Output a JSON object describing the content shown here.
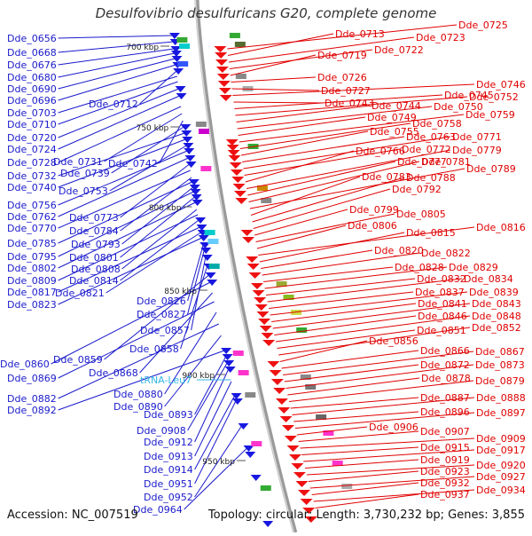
{
  "title": "Desulfovibrio desulfuricans G20, complete genome",
  "accession": "Accession: NC_007519",
  "summary": "Topology: circular; Length: 3,730,232 bp; Genes: 3,855",
  "colors": {
    "left_label": "#1a1acc",
    "right_label": "#e00000",
    "trna_label": "#33b5e5",
    "backbone": "#9a9a9a"
  },
  "kbp_marks": [
    "700 kbp",
    "750 kbp",
    "800 kbp",
    "850 kbp",
    "900 kbp",
    "950 kbp"
  ],
  "left_labels": [
    "Dde_0656",
    "Dde_0668",
    "Dde_0676",
    "Dde_0680",
    "Dde_0690",
    "Dde_0696",
    "Dde_0712",
    "Dde_0703",
    "Dde_0710",
    "Dde_0720",
    "Dde_0724",
    "Dde_0728",
    "Dde_0731",
    "Dde_0742",
    "Dde_0739",
    "Dde_0732",
    "Dde_0740",
    "Dde_0753",
    "Dde_0756",
    "Dde_0762",
    "Dde_0773",
    "Dde_0770",
    "Dde_0784",
    "Dde_0785",
    "Dde_0793",
    "Dde_0795",
    "Dde_0801",
    "Dde_0802",
    "Dde_0808",
    "Dde_0809",
    "Dde_0814",
    "Dde_0817",
    "Dde_0821",
    "Dde_0823",
    "Dde_0826",
    "Dde_0827",
    "Dde_0857",
    "Dde_0858",
    "Dde_0859",
    "Dde_0860",
    "Dde_0868",
    "Dde_0869",
    "Dde_0880",
    "Dde_0882",
    "Dde_0890",
    "Dde_0892",
    "Dde_0893",
    "Dde_0908",
    "Dde_0912",
    "Dde_0913",
    "Dde_0914",
    "Dde_0951",
    "Dde_0952",
    "Dde_0964"
  ],
  "trna_label": "tRNA-Leu7",
  "right_labels": [
    "Dde_0725",
    "Dde_0713",
    "Dde_0723",
    "Dde_0722",
    "Dde_0719",
    "Dde_0726",
    "Dde_0727",
    "Dde_0746",
    "Dde_0743",
    "Dde_0745",
    "Dde_0752",
    "Dde_0744",
    "Dde_0750",
    "Dde_0749",
    "Dde_0759",
    "Dde_0758",
    "Dde_0755",
    "Dde_0763",
    "Dde_0771",
    "Dde_0772",
    "Dde_0766",
    "Dde_0779",
    "Dde_0777",
    "Dde_0781",
    "Dde_0789",
    "Dde_0783",
    "Dde_0788",
    "Dde_0792",
    "Dde_0799",
    "Dde_0805",
    "Dde_0806",
    "Dde_0816",
    "Dde_0815",
    "Dde_0820",
    "Dde_0822",
    "Dde_0828",
    "Dde_0829",
    "Dde_0832",
    "Dde_0834",
    "Dde_0837",
    "Dde_0839",
    "Dde_0841",
    "Dde_0843",
    "Dde_0846",
    "Dde_0848",
    "Dde_0851",
    "Dde_0852",
    "Dde_0856",
    "Dde_0866",
    "Dde_0867",
    "Dde_0872",
    "Dde_0873",
    "Dde_0878",
    "Dde_0879",
    "Dde_0887",
    "Dde_0888",
    "Dde_0896",
    "Dde_0897",
    "Dde_0906",
    "Dde_0907",
    "Dde_0909",
    "Dde_0915",
    "Dde_0917",
    "Dde_0919",
    "Dde_0920",
    "Dde_0923",
    "Dde_0927",
    "Dde_0932",
    "Dde_0934",
    "Dde_0937"
  ]
}
